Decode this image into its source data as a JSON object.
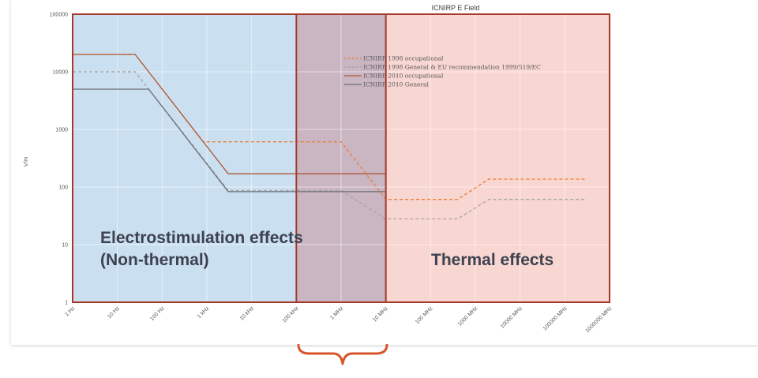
{
  "chart_data": {
    "type": "line",
    "title": "ICNIRP E Field",
    "ylabel": "V/m",
    "xscale": "log",
    "yscale": "log",
    "xlim_hz": [
      1,
      1000000000000
    ],
    "ylim": [
      1,
      100000
    ],
    "x_tick_labels": [
      "1 Hz",
      "10 Hz",
      "100 Hz",
      "1 kHz",
      "10 kHz",
      "100 kHz",
      "1 MHz",
      "10 MHz",
      "100 MHz",
      "1000 MHz",
      "10000 MHz",
      "100000 MHz",
      "1000000 MHz"
    ],
    "y_tick_labels": [
      "100000",
      "10000",
      "1000",
      "100",
      "10",
      "1"
    ],
    "legend_position": "top-center",
    "series": [
      {
        "name": "ICNIRP 1998 occupational",
        "style": "dashed",
        "color": "#ed7d31",
        "x": [
          1,
          25,
          820,
          65000,
          1000000,
          10000000,
          400000000,
          2000000000,
          300000000000
        ],
        "y": [
          20000,
          20000,
          610,
          610,
          610,
          61,
          61,
          137,
          137
        ]
      },
      {
        "name": "ICNIRP 1998 General & EU recommendation 1999/519/EC",
        "style": "dashed",
        "color": "#a5a5a5",
        "x": [
          1,
          25,
          3000,
          1000000,
          10000000,
          400000000,
          2000000000,
          300000000000
        ],
        "y": [
          10000,
          10000,
          87,
          87,
          28,
          28,
          61,
          61
        ]
      },
      {
        "name": "ICNIRP 2010  occupational",
        "style": "solid",
        "color": "#b05a38",
        "x": [
          1,
          25,
          3000,
          10000000
        ],
        "y": [
          20000,
          20000,
          170,
          170
        ]
      },
      {
        "name": "ICNIRP 2010 General",
        "style": "solid",
        "color": "#6b6f78",
        "x": [
          1,
          50,
          3000,
          10000000
        ],
        "y": [
          5000,
          5000,
          83,
          83
        ]
      }
    ],
    "regions": [
      {
        "label_line1": "Electrostimulation effects",
        "label_line2": "(Non-thermal)",
        "x_from": 1,
        "x_to": 10000000,
        "fill": "#b8d4ea"
      },
      {
        "label_line1": "Thermal effects",
        "label_line2": "",
        "x_from": 100000,
        "x_to": 1000000000000,
        "fill": "#f5c8c3"
      }
    ],
    "grid": true
  }
}
